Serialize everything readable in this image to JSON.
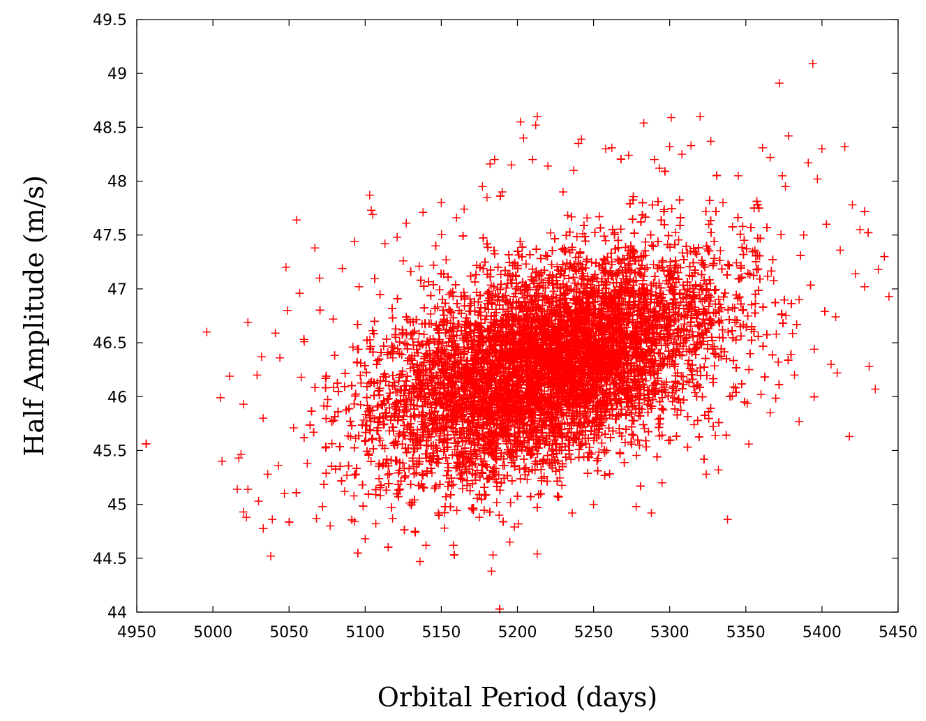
{
  "chart_data": {
    "type": "scatter",
    "title": "",
    "xlabel": "Orbital Period (days)",
    "ylabel": "Half Amplitude (m/s)",
    "xlim": [
      4950,
      5450
    ],
    "ylim": [
      44,
      49.5
    ],
    "x_ticks": [
      4950,
      5000,
      5050,
      5100,
      5150,
      5200,
      5250,
      5300,
      5350,
      5400,
      5450
    ],
    "y_ticks": [
      44,
      44.5,
      45,
      45.5,
      46,
      46.5,
      47,
      47.5,
      48,
      48.5,
      49,
      49.5
    ],
    "x_tick_labels": [
      "4950",
      "5000",
      "5050",
      "5100",
      "5150",
      "5200",
      "5250",
      "5300",
      "5350",
      "5400",
      "5450"
    ],
    "y_tick_labels": [
      "44",
      "44.5",
      "45",
      "45.5",
      "46",
      "46.5",
      "47",
      "47.5",
      "48",
      "48.5",
      "49",
      "49.5"
    ],
    "grid": false,
    "legend": "none",
    "marker": "plus",
    "color": "#ff0000",
    "distribution": {
      "mean": [
        5220,
        46.3
      ],
      "std": [
        55,
        0.5
      ],
      "correlation": 0.45
    },
    "series": [
      {
        "points": [
          [
            4996,
            46.6
          ],
          [
            5005,
            45.99
          ],
          [
            5006,
            45.4
          ],
          [
            5011,
            46.19
          ],
          [
            5016,
            45.14
          ],
          [
            5017,
            45.43
          ],
          [
            5020,
            44.93
          ],
          [
            5020,
            45.93
          ],
          [
            5022,
            44.88
          ],
          [
            5023,
            46.69
          ],
          [
            5023,
            45.14
          ],
          [
            5029,
            46.2
          ],
          [
            5030,
            45.03
          ],
          [
            5032,
            46.37
          ],
          [
            5033,
            45.8
          ],
          [
            5036,
            45.28
          ],
          [
            5038,
            44.52
          ],
          [
            5039,
            44.86
          ],
          [
            5041,
            46.59
          ],
          [
            5043,
            45.36
          ],
          [
            5047,
            45.1
          ],
          [
            5048,
            47.2
          ],
          [
            5049,
            46.8
          ],
          [
            5055,
            47.64
          ],
          [
            5057,
            46.96
          ],
          [
            5060,
            46.51
          ],
          [
            5067,
            47.38
          ],
          [
            5068,
            44.87
          ],
          [
            5070,
            47.1
          ],
          [
            5072,
            44.98
          ],
          [
            5077,
            44.8
          ],
          [
            5085,
            47.19
          ],
          [
            5093,
            47.44
          ],
          [
            5093,
            44.84
          ],
          [
            5100,
            44.68
          ],
          [
            5103,
            47.87
          ],
          [
            5104,
            47.73
          ],
          [
            5105,
            47.69
          ],
          [
            5107,
            44.82
          ],
          [
            5113,
            47.42
          ],
          [
            5118,
            44.87
          ],
          [
            5121,
            47.48
          ],
          [
            5127,
            47.61
          ],
          [
            5133,
            44.74
          ],
          [
            5136,
            44.47
          ],
          [
            5138,
            47.71
          ],
          [
            5140,
            44.62
          ],
          [
            5145,
            47.22
          ],
          [
            5150,
            47.8
          ],
          [
            5152,
            44.78
          ],
          [
            5158,
            44.62
          ],
          [
            5160,
            47.66
          ],
          [
            5165,
            47.74
          ],
          [
            5175,
            44.88
          ],
          [
            5177,
            47.95
          ],
          [
            5180,
            47.85
          ],
          [
            5182,
            48.16
          ],
          [
            5183,
            44.38
          ],
          [
            5184,
            44.53
          ],
          [
            5185,
            48.2
          ],
          [
            5190,
            47.9
          ],
          [
            5195,
            44.65
          ],
          [
            5196,
            48.15
          ],
          [
            5198,
            44.79
          ],
          [
            5202,
            48.55
          ],
          [
            5204,
            48.4
          ],
          [
            5210,
            48.2
          ],
          [
            5212,
            48.52
          ],
          [
            5213,
            48.6
          ],
          [
            5213,
            44.54
          ],
          [
            5220,
            48.14
          ],
          [
            5230,
            47.9
          ],
          [
            5237,
            48.1
          ],
          [
            5240,
            48.35
          ],
          [
            5242,
            48.39
          ],
          [
            5236,
            44.92
          ],
          [
            5250,
            45.0
          ],
          [
            5258,
            48.3
          ],
          [
            5262,
            48.31
          ],
          [
            5273,
            48.24
          ],
          [
            5278,
            44.98
          ],
          [
            5283,
            48.54
          ],
          [
            5288,
            44.92
          ],
          [
            5290,
            48.2
          ],
          [
            5295,
            45.2
          ],
          [
            5300,
            48.32
          ],
          [
            5301,
            48.59
          ],
          [
            5308,
            48.25
          ],
          [
            5314,
            48.33
          ],
          [
            5320,
            48.6
          ],
          [
            5324,
            45.28
          ],
          [
            5327,
            48.37
          ],
          [
            5332,
            45.32
          ],
          [
            5338,
            44.86
          ],
          [
            5345,
            48.05
          ],
          [
            5352,
            45.56
          ],
          [
            5361,
            48.31
          ],
          [
            5366,
            48.22
          ],
          [
            5372,
            48.91
          ],
          [
            5374,
            48.05
          ],
          [
            5376,
            47.95
          ],
          [
            5378,
            48.42
          ],
          [
            5385,
            45.77
          ],
          [
            5388,
            47.5
          ],
          [
            5391,
            48.17
          ],
          [
            5394,
            49.09
          ],
          [
            5397,
            48.02
          ],
          [
            5400,
            48.3
          ],
          [
            5403,
            47.6
          ],
          [
            5406,
            46.3
          ],
          [
            5410,
            46.22
          ],
          [
            5412,
            47.36
          ],
          [
            5415,
            48.32
          ],
          [
            5418,
            45.63
          ],
          [
            5420,
            47.78
          ],
          [
            5422,
            47.14
          ],
          [
            5425,
            47.55
          ],
          [
            5428,
            47.02
          ],
          [
            5431,
            46.28
          ],
          [
            5435,
            46.07
          ],
          [
            5437,
            47.18
          ],
          [
            5441,
            47.3
          ],
          [
            5444,
            46.93
          ],
          [
            5409,
            46.74
          ],
          [
            5395,
            46.44
          ],
          [
            5385,
            46.9
          ],
          [
            5382,
            46.2
          ],
          [
            5370,
            46.58
          ],
          [
            5366,
            45.85
          ],
          [
            5360,
            46.02
          ],
          [
            5356,
            47.36
          ],
          [
            5348,
            47.58
          ],
          [
            5342,
            46.09
          ],
          [
            5335,
            47.8
          ],
          [
            5330,
            45.64
          ],
          [
            5316,
            45.74
          ],
          [
            5044,
            46.36
          ],
          [
            5053,
            45.71
          ],
          [
            5058,
            46.18
          ],
          [
            5062,
            45.38
          ],
          [
            5075,
            45.91
          ],
          [
            5079,
            46.72
          ],
          [
            5088,
            45.27
          ],
          [
            5096,
            47.02
          ],
          [
            5110,
            45.08
          ],
          [
            5125,
            47.26
          ],
          [
            5131,
            45.02
          ],
          [
            5148,
            44.92
          ],
          [
            5170,
            44.96
          ],
          [
            5188,
            44.9
          ]
        ]
      }
    ]
  }
}
